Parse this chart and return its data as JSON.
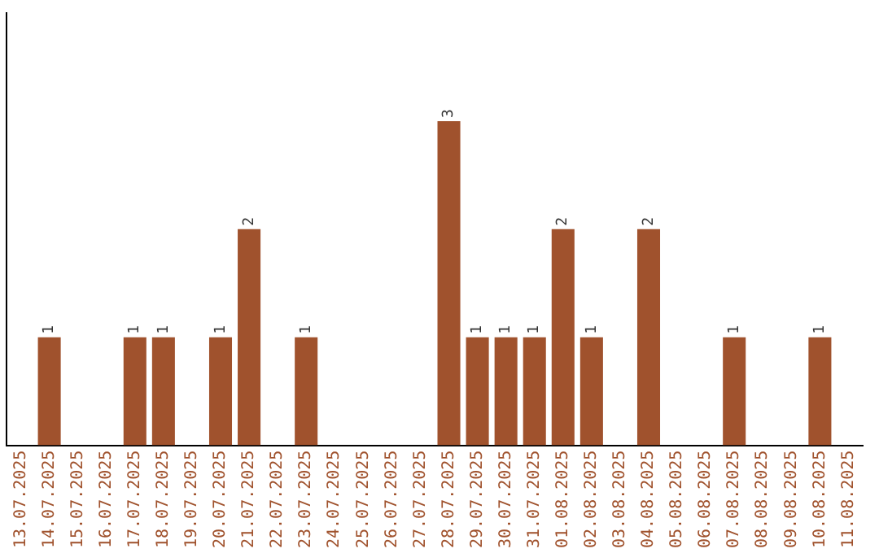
{
  "chart_data": {
    "type": "bar",
    "categories": [
      "13.07.2025",
      "14.07.2025",
      "15.07.2025",
      "16.07.2025",
      "17.07.2025",
      "18.07.2025",
      "19.07.2025",
      "20.07.2025",
      "21.07.2025",
      "22.07.2025",
      "23.07.2025",
      "24.07.2025",
      "25.07.2025",
      "26.07.2025",
      "27.07.2025",
      "28.07.2025",
      "29.07.2025",
      "30.07.2025",
      "31.07.2025",
      "01.08.2025",
      "02.08.2025",
      "03.08.2025",
      "04.08.2025",
      "05.08.2025",
      "06.08.2025",
      "07.08.2025",
      "08.08.2025",
      "09.08.2025",
      "10.08.2025",
      "11.08.2025"
    ],
    "values": [
      0,
      1,
      0,
      0,
      1,
      1,
      0,
      1,
      2,
      0,
      1,
      0,
      0,
      0,
      0,
      3,
      1,
      1,
      1,
      2,
      1,
      0,
      2,
      0,
      0,
      1,
      0,
      0,
      1,
      0
    ],
    "value_labels": [
      null,
      "1",
      null,
      null,
      "1",
      "1",
      null,
      "1",
      "2",
      null,
      "1",
      null,
      null,
      null,
      null,
      "3",
      "1",
      "1",
      "1",
      "2",
      "1",
      null,
      "2",
      null,
      null,
      "1",
      null,
      null,
      "1",
      null
    ],
    "color": "#a0522d",
    "grid": false,
    "legend": false,
    "tick_labels": "x"
  }
}
